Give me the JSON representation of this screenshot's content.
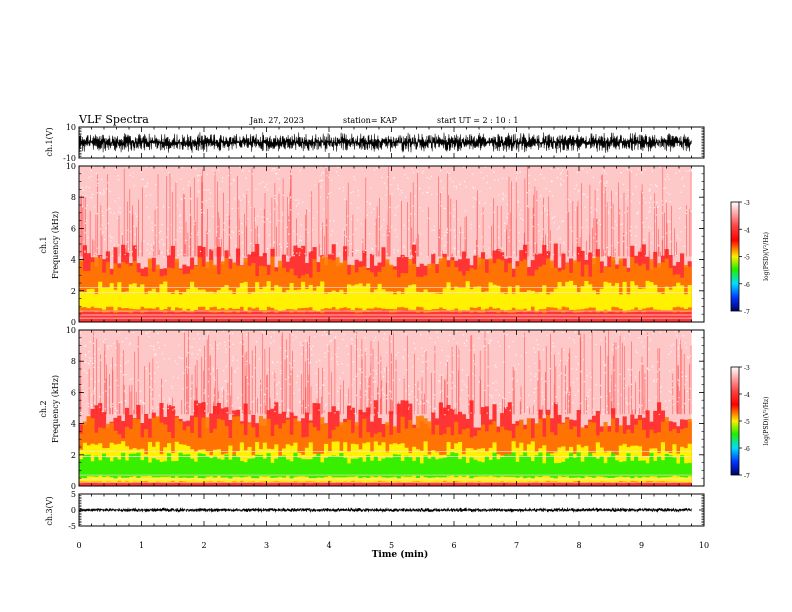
{
  "header": {
    "title": "VLF Spectra",
    "date": "Jan. 27, 2023",
    "station": "station= KAP",
    "start": "start  UT =   2 : 10 : 1"
  },
  "colors": {
    "spectrum_bg": "#ffc8c8",
    "spectrum_red": "#ff1a1a",
    "spectrum_orange": "#ff7a00",
    "spectrum_yellow": "#ffff00",
    "spectrum_green": "#22ee00",
    "line": "#000000"
  },
  "chart_data": [
    {
      "id": "ch1-waveform",
      "type": "line",
      "ylabel": "ch.1(V)",
      "ylim": [
        -10,
        10
      ],
      "yticks": [
        "10",
        "-10"
      ],
      "xlim": [
        0,
        10
      ],
      "description_values": {
        "amplitude_typical": 7,
        "data_end_min": 9.8
      }
    },
    {
      "id": "ch1-spectrogram",
      "type": "heatmap",
      "ylabel": "ch.1 Frequency (kHz)",
      "ylim": [
        0,
        10
      ],
      "yticks": [
        "0",
        "2",
        "4",
        "6",
        "8",
        "10"
      ],
      "xlim": [
        0,
        10
      ],
      "band_khz": {
        "yellow": [
          0.9,
          2.2
        ],
        "orange": [
          0.7,
          3.5
        ],
        "red": [
          0,
          4.2
        ]
      },
      "data_end_min": 9.8,
      "colorbar": {
        "label": "log(PSD)(V²/Hz)",
        "ticks": [
          "-3",
          "-4",
          "-5",
          "-6",
          "-7"
        ],
        "range": [
          -7,
          -3
        ]
      }
    },
    {
      "id": "ch2-spectrogram",
      "type": "heatmap",
      "ylabel": "ch.2 Frequency (kHz)",
      "ylim": [
        0,
        10
      ],
      "yticks": [
        "0",
        "2",
        "4",
        "6",
        "8",
        "10"
      ],
      "xlim": [
        0,
        10
      ],
      "band_khz": {
        "green": [
          0.6,
          1.8
        ],
        "yellow": [
          0.3,
          2.4
        ],
        "orange": [
          0.2,
          3.8
        ],
        "red": [
          0,
          4.6
        ]
      },
      "data_end_min": 9.8,
      "colorbar": {
        "label": "log(PSD)(V²/Hz)",
        "ticks": [
          "-3",
          "-4",
          "-5",
          "-6",
          "-7"
        ],
        "range": [
          -7,
          -3
        ]
      }
    },
    {
      "id": "ch3-waveform",
      "type": "line",
      "ylabel": "ch.3(V)",
      "ylim": [
        -5,
        5
      ],
      "yticks": [
        "5",
        "0",
        "-5"
      ],
      "xlim": [
        0,
        10
      ],
      "description_values": {
        "amplitude_typical": 0.8,
        "data_end_min": 9.8
      },
      "xlabel": "Time  (min)",
      "xticks": [
        "0",
        "1",
        "2",
        "3",
        "4",
        "5",
        "6",
        "7",
        "8",
        "9",
        "10"
      ]
    }
  ]
}
